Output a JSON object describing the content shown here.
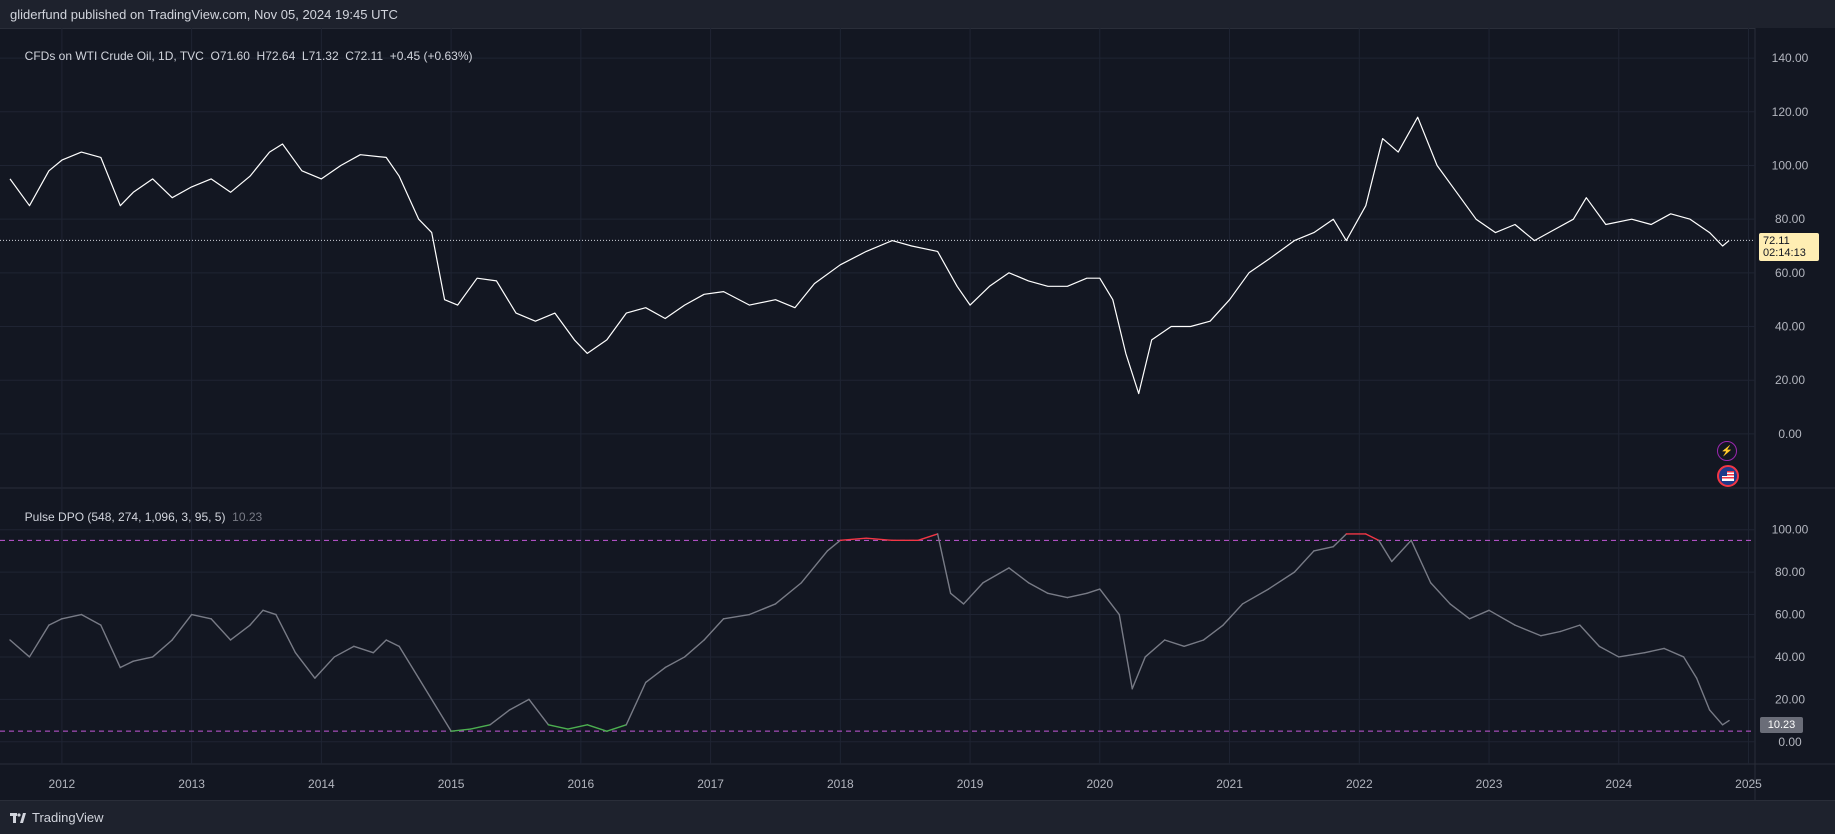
{
  "header": {
    "publish_text": "gliderfund published on TradingView.com, Nov 05, 2024 19:45 UTC"
  },
  "footer": {
    "brand": "TradingView"
  },
  "price_tag": {
    "value": "72.11",
    "countdown": "02:14:13"
  },
  "indicator_tag": {
    "value": "10.23"
  },
  "icons": {
    "flash": "lightning-icon",
    "flag": "us-flag-icon"
  },
  "colors": {
    "background": "#131722",
    "price_line": "#ffffff",
    "indicator_line": "#787b86",
    "overbought": "#f23645",
    "oversold": "#4caf50",
    "threshold_line": "#c558d8",
    "last_price_line": "#d1d4dc"
  },
  "chart_data": [
    {
      "type": "line",
      "legend": {
        "symbol": "CFDs on WTI Crude Oil, 1D, TVC",
        "open": "O71.60",
        "high": "H72.64",
        "low": "L71.32",
        "close": "C72.11",
        "change": "+0.45 (+0.63%)"
      },
      "ylim": [
        -6,
        146
      ],
      "yticks": [
        "140.00",
        "120.00",
        "100.00",
        "80.00",
        "60.00",
        "40.00",
        "20.00",
        "0.00"
      ],
      "last_price": 72.11,
      "series": [
        {
          "x": [
            2011.6,
            2011.75,
            2011.9,
            2012.0,
            2012.15,
            2012.3,
            2012.45,
            2012.55,
            2012.7,
            2012.85,
            2013.0,
            2013.15,
            2013.3,
            2013.45,
            2013.6,
            2013.7,
            2013.85,
            2014.0,
            2014.15,
            2014.3,
            2014.5,
            2014.6,
            2014.75,
            2014.85,
            2014.95,
            2015.05,
            2015.2,
            2015.35,
            2015.5,
            2015.65,
            2015.8,
            2015.95,
            2016.05,
            2016.2,
            2016.35,
            2016.5,
            2016.65,
            2016.8,
            2016.95,
            2017.1,
            2017.3,
            2017.5,
            2017.65,
            2017.8,
            2018.0,
            2018.2,
            2018.4,
            2018.55,
            2018.75,
            2018.9,
            2019.0,
            2019.15,
            2019.3,
            2019.45,
            2019.6,
            2019.75,
            2019.9,
            2020.0,
            2020.1,
            2020.2,
            2020.3,
            2020.4,
            2020.55,
            2020.7,
            2020.85,
            2021.0,
            2021.15,
            2021.3,
            2021.5,
            2021.65,
            2021.8,
            2021.9,
            2022.05,
            2022.18,
            2022.3,
            2022.45,
            2022.6,
            2022.75,
            2022.9,
            2023.05,
            2023.2,
            2023.35,
            2023.5,
            2023.65,
            2023.75,
            2023.9,
            2024.1,
            2024.25,
            2024.4,
            2024.55,
            2024.7,
            2024.8,
            2024.85
          ],
          "y": [
            95,
            85,
            98,
            102,
            105,
            103,
            85,
            90,
            95,
            88,
            92,
            95,
            90,
            96,
            105,
            108,
            98,
            95,
            100,
            104,
            103,
            96,
            80,
            75,
            50,
            48,
            58,
            57,
            45,
            42,
            45,
            35,
            30,
            35,
            45,
            47,
            43,
            48,
            52,
            53,
            48,
            50,
            47,
            56,
            63,
            68,
            72,
            70,
            68,
            55,
            48,
            55,
            60,
            57,
            55,
            55,
            58,
            58,
            50,
            30,
            15,
            35,
            40,
            40,
            42,
            50,
            60,
            65,
            72,
            75,
            80,
            72,
            85,
            110,
            105,
            118,
            100,
            90,
            80,
            75,
            78,
            72,
            76,
            80,
            88,
            78,
            80,
            78,
            82,
            80,
            75,
            70,
            72
          ],
          "name": ""
        }
      ]
    },
    {
      "type": "line",
      "legend": {
        "title": "Pulse DPO (548, 274, 1,096, 3, 95, 5)",
        "value": "10.23"
      },
      "ylim": [
        -2,
        106
      ],
      "yticks": [
        "100.00",
        "80.00",
        "60.00",
        "40.00",
        "20.00",
        "0.00"
      ],
      "thresholds": [
        95,
        5
      ],
      "series": [
        {
          "x": [
            2011.6,
            2011.75,
            2011.9,
            2012.0,
            2012.15,
            2012.3,
            2012.45,
            2012.55,
            2012.7,
            2012.85,
            2013.0,
            2013.15,
            2013.3,
            2013.45,
            2013.55,
            2013.65,
            2013.8,
            2013.95,
            2014.1,
            2014.25,
            2014.4,
            2014.5,
            2014.6,
            2014.75,
            2014.85,
            2015.0,
            2015.15,
            2015.3,
            2015.45,
            2015.6,
            2015.75,
            2015.9,
            2016.05,
            2016.2,
            2016.35,
            2016.5,
            2016.65,
            2016.8,
            2016.95,
            2017.1,
            2017.3,
            2017.5,
            2017.7,
            2017.9,
            2018.0,
            2018.2,
            2018.4,
            2018.6,
            2018.75,
            2018.85,
            2018.95,
            2019.1,
            2019.3,
            2019.45,
            2019.6,
            2019.75,
            2019.9,
            2020.0,
            2020.15,
            2020.25,
            2020.35,
            2020.5,
            2020.65,
            2020.8,
            2020.95,
            2021.1,
            2021.3,
            2021.5,
            2021.65,
            2021.8,
            2021.9,
            2022.05,
            2022.15,
            2022.25,
            2022.4,
            2022.55,
            2022.7,
            2022.85,
            2023.0,
            2023.2,
            2023.4,
            2023.55,
            2023.7,
            2023.85,
            2024.0,
            2024.2,
            2024.35,
            2024.5,
            2024.6,
            2024.7,
            2024.8,
            2024.85
          ],
          "y": [
            48,
            40,
            55,
            58,
            60,
            55,
            35,
            38,
            40,
            48,
            60,
            58,
            48,
            55,
            62,
            60,
            42,
            30,
            40,
            45,
            42,
            48,
            45,
            30,
            20,
            5,
            6,
            8,
            15,
            20,
            8,
            6,
            8,
            5,
            8,
            28,
            35,
            40,
            48,
            58,
            60,
            65,
            75,
            90,
            95,
            96,
            95,
            95,
            98,
            70,
            65,
            75,
            82,
            75,
            70,
            68,
            70,
            72,
            60,
            25,
            40,
            48,
            45,
            48,
            55,
            65,
            72,
            80,
            90,
            92,
            98,
            98,
            95,
            85,
            95,
            75,
            65,
            58,
            62,
            55,
            50,
            52,
            55,
            45,
            40,
            42,
            44,
            40,
            30,
            15,
            8,
            10
          ],
          "name": ""
        }
      ]
    }
  ],
  "x_axis": {
    "labels": [
      "2012",
      "2013",
      "2014",
      "2015",
      "2016",
      "2017",
      "2018",
      "2019",
      "2020",
      "2021",
      "2022",
      "2023",
      "2024",
      "2025"
    ]
  }
}
